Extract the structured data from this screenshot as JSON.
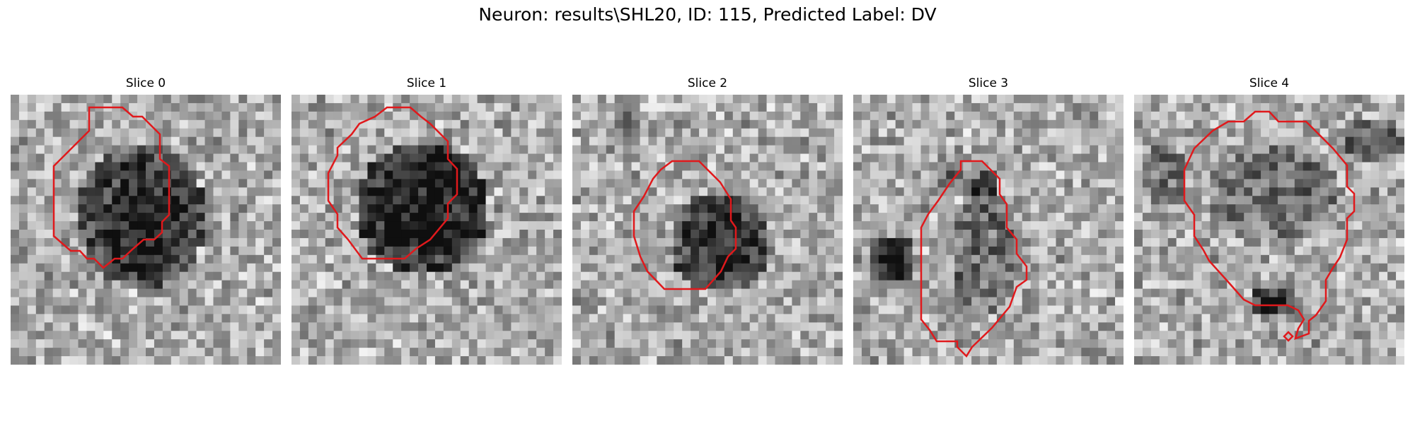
{
  "figure": {
    "title": "Neuron: results\\SHL20, ID: 115, Predicted Label: DV"
  },
  "panels": [
    {
      "title": "Slice 0"
    },
    {
      "title": "Slice 1"
    },
    {
      "title": "Slice 2"
    },
    {
      "title": "Slice 3"
    },
    {
      "title": "Slice 4"
    }
  ],
  "colors": {
    "contour": "#e0191c",
    "background": "#ffffff"
  }
}
